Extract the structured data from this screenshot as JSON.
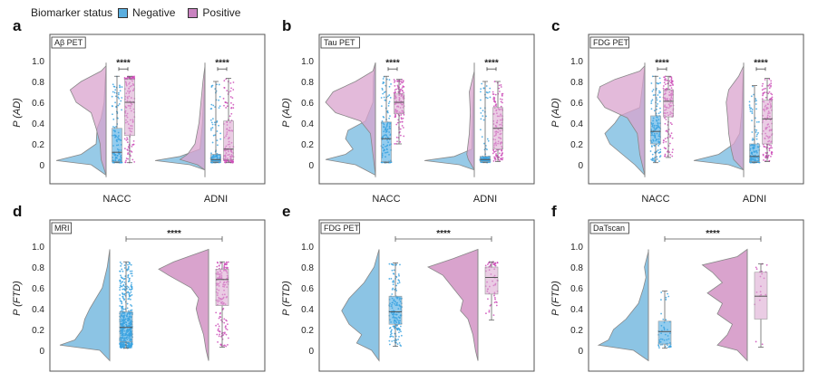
{
  "legend": {
    "title": "Biomarker status",
    "items": [
      {
        "label": "Negative",
        "color": "#5aaedf"
      },
      {
        "label": "Positive",
        "color": "#c983c0"
      }
    ]
  },
  "colors": {
    "negative_fill": "#8cc4e4",
    "positive_fill": "#d9a3cd",
    "negative_point": "#3ba3e0",
    "positive_point": "#cc4fb8",
    "frame": "#555555",
    "tag_border": "#333333"
  },
  "chart_data": [
    {
      "panel": "a",
      "type": "raincloud",
      "tag": "Aβ PET",
      "ylabel": "P (AD)",
      "yticks": [
        "0",
        "0.2",
        "0.4",
        "0.6",
        "0.8",
        "1.0"
      ],
      "ylim": [
        -0.15,
        1.15
      ],
      "groups": [
        {
          "label": "NACC",
          "significance": "****",
          "negative": {
            "min": 0.02,
            "q1": 0.03,
            "median": 0.12,
            "q3": 0.35,
            "max": 0.85
          },
          "positive": {
            "min": 0.02,
            "q1": 0.28,
            "median": 0.6,
            "q3": 0.82,
            "max": 0.85
          }
        },
        {
          "label": "ADNI",
          "significance": "****",
          "negative": {
            "min": 0.02,
            "q1": 0.03,
            "median": 0.05,
            "q3": 0.1,
            "max": 0.8
          },
          "positive": {
            "min": 0.02,
            "q1": 0.05,
            "median": 0.15,
            "q3": 0.42,
            "max": 0.83
          }
        }
      ]
    },
    {
      "panel": "b",
      "type": "raincloud",
      "tag": "Tau PET",
      "ylabel": "P (AD)",
      "yticks": [
        "0",
        "0.2",
        "0.4",
        "0.6",
        "0.8",
        "1.0"
      ],
      "ylim": [
        -0.15,
        1.15
      ],
      "groups": [
        {
          "label": "NACC",
          "significance": "****",
          "negative": {
            "min": 0.02,
            "q1": 0.03,
            "median": 0.25,
            "q3": 0.41,
            "max": 0.85
          },
          "positive": {
            "min": 0.2,
            "q1": 0.49,
            "median": 0.6,
            "q3": 0.68,
            "max": 0.82
          }
        },
        {
          "label": "ADNI",
          "significance": "****",
          "negative": {
            "min": 0.02,
            "q1": 0.03,
            "median": 0.05,
            "q3": 0.08,
            "max": 0.8
          },
          "positive": {
            "min": 0.03,
            "q1": 0.15,
            "median": 0.35,
            "q3": 0.55,
            "max": 0.8
          }
        }
      ]
    },
    {
      "panel": "c",
      "type": "raincloud",
      "tag": "FDG PET",
      "ylabel": "P (AD)",
      "yticks": [
        "0",
        "0.2",
        "0.4",
        "0.6",
        "0.8",
        "1.0"
      ],
      "ylim": [
        -0.15,
        1.15
      ],
      "groups": [
        {
          "label": "NACC",
          "significance": "****",
          "negative": {
            "min": 0.02,
            "q1": 0.2,
            "median": 0.32,
            "q3": 0.47,
            "max": 0.85
          },
          "positive": {
            "min": 0.07,
            "q1": 0.46,
            "median": 0.61,
            "q3": 0.72,
            "max": 0.85
          }
        },
        {
          "label": "ADNI",
          "significance": "****",
          "negative": {
            "min": 0.02,
            "q1": 0.03,
            "median": 0.08,
            "q3": 0.2,
            "max": 0.76
          },
          "positive": {
            "min": 0.03,
            "q1": 0.2,
            "median": 0.44,
            "q3": 0.62,
            "max": 0.83
          }
        }
      ]
    },
    {
      "panel": "d",
      "type": "raincloud",
      "tag": "MRI",
      "ylabel": "P (FTD)",
      "yticks": [
        "0",
        "0.2",
        "0.4",
        "0.6",
        "0.8",
        "1.0"
      ],
      "ylim": [
        -0.15,
        1.15
      ],
      "significance": "****",
      "negative": {
        "min": 0.02,
        "q1": 0.08,
        "median": 0.22,
        "q3": 0.37,
        "max": 0.85
      },
      "positive": {
        "min": 0.03,
        "q1": 0.43,
        "median": 0.68,
        "q3": 0.78,
        "max": 0.85
      }
    },
    {
      "panel": "e",
      "type": "raincloud",
      "tag": "FDG PET",
      "ylabel": "P (FTD)",
      "yticks": [
        "0",
        "0.2",
        "0.4",
        "0.6",
        "0.8",
        "1.0"
      ],
      "ylim": [
        -0.15,
        1.15
      ],
      "significance": "****",
      "negative": {
        "min": 0.04,
        "q1": 0.25,
        "median": 0.37,
        "q3": 0.52,
        "max": 0.84
      },
      "positive": {
        "min": 0.29,
        "q1": 0.54,
        "median": 0.7,
        "q3": 0.8,
        "max": 0.85
      }
    },
    {
      "panel": "f",
      "type": "raincloud",
      "tag": "DaTscan",
      "ylabel": "P (FTD)",
      "yticks": [
        "0",
        "0.2",
        "0.4",
        "0.6",
        "0.8",
        "1.0"
      ],
      "ylim": [
        -0.15,
        1.15
      ],
      "significance": "****",
      "negative": {
        "min": 0.02,
        "q1": 0.06,
        "median": 0.18,
        "q3": 0.28,
        "max": 0.57
      },
      "positive": {
        "min": 0.03,
        "q1": 0.3,
        "median": 0.52,
        "q3": 0.75,
        "max": 0.83
      }
    }
  ]
}
